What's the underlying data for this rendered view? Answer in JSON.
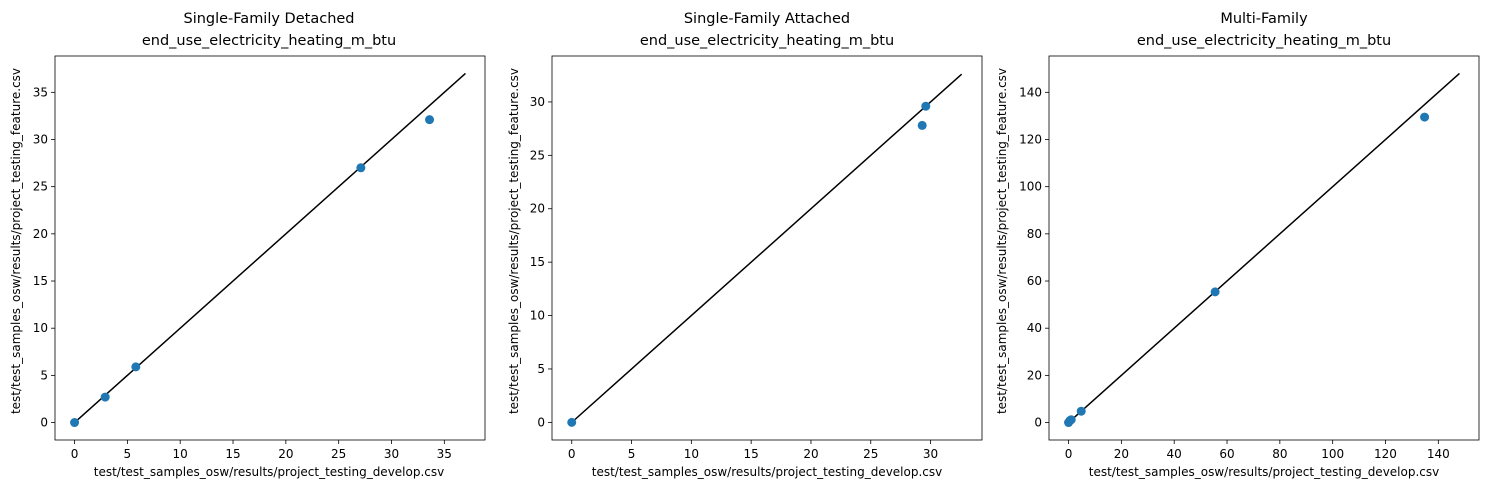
{
  "chart_data": [
    {
      "type": "scatter",
      "title": "Single-Family Detached",
      "subtitle": "end_use_electricity_heating_m_btu",
      "xlabel": "test/test_samples_osw/results/project_testing_develop.csv",
      "ylabel": "test/test_samples_osw/results/project_testing_feature.csv",
      "xlim": [
        -1.85,
        38.85
      ],
      "ylim": [
        -1.85,
        38.85
      ],
      "xticks": [
        0,
        5,
        10,
        15,
        20,
        25,
        30,
        35
      ],
      "yticks": [
        0,
        5,
        10,
        15,
        20,
        25,
        30,
        35
      ],
      "series": [
        {
          "points": [
            [
              0,
              0
            ],
            [
              2.9,
              2.7
            ],
            [
              5.8,
              5.9
            ],
            [
              27.1,
              27.0
            ],
            [
              33.6,
              32.1
            ]
          ],
          "color": "#1f77b4"
        }
      ],
      "reference_line": {
        "from": 0,
        "to": 37,
        "color": "#000000"
      },
      "grid": false
    },
    {
      "type": "scatter",
      "title": "Single-Family Attached",
      "subtitle": "end_use_electricity_heating_m_btu",
      "xlabel": "test/test_samples_osw/results/project_testing_develop.csv",
      "ylabel": "test/test_samples_osw/results/project_testing_feature.csv",
      "xlim": [
        -1.65,
        34.3
      ],
      "ylim": [
        -1.65,
        34.3
      ],
      "xticks": [
        0,
        5,
        10,
        15,
        20,
        25,
        30
      ],
      "yticks": [
        0,
        5,
        10,
        15,
        20,
        25,
        30
      ],
      "series": [
        {
          "points": [
            [
              0,
              0
            ],
            [
              29.3,
              27.8
            ],
            [
              29.6,
              29.6
            ]
          ],
          "color": "#1f77b4"
        }
      ],
      "reference_line": {
        "from": 0,
        "to": 32.6,
        "color": "#000000"
      },
      "grid": false
    },
    {
      "type": "scatter",
      "title": "Multi-Family",
      "subtitle": "end_use_electricity_heating_m_btu",
      "xlabel": "test/test_samples_osw/results/project_testing_develop.csv",
      "ylabel": "test/test_samples_osw/results/project_testing_feature.csv",
      "xlim": [
        -7.4,
        155.4
      ],
      "ylim": [
        -7.4,
        155.4
      ],
      "xticks": [
        0,
        20,
        40,
        60,
        80,
        100,
        120,
        140
      ],
      "yticks": [
        0,
        20,
        40,
        60,
        80,
        100,
        120,
        140
      ],
      "series": [
        {
          "points": [
            [
              0,
              0
            ],
            [
              0.5,
              0.8
            ],
            [
              1.0,
              1.2
            ],
            [
              4.8,
              4.8
            ],
            [
              55.5,
              55.4
            ],
            [
              134.8,
              129.5
            ]
          ],
          "color": "#1f77b4"
        }
      ],
      "reference_line": {
        "from": 0,
        "to": 148,
        "color": "#000000"
      },
      "grid": false
    }
  ]
}
